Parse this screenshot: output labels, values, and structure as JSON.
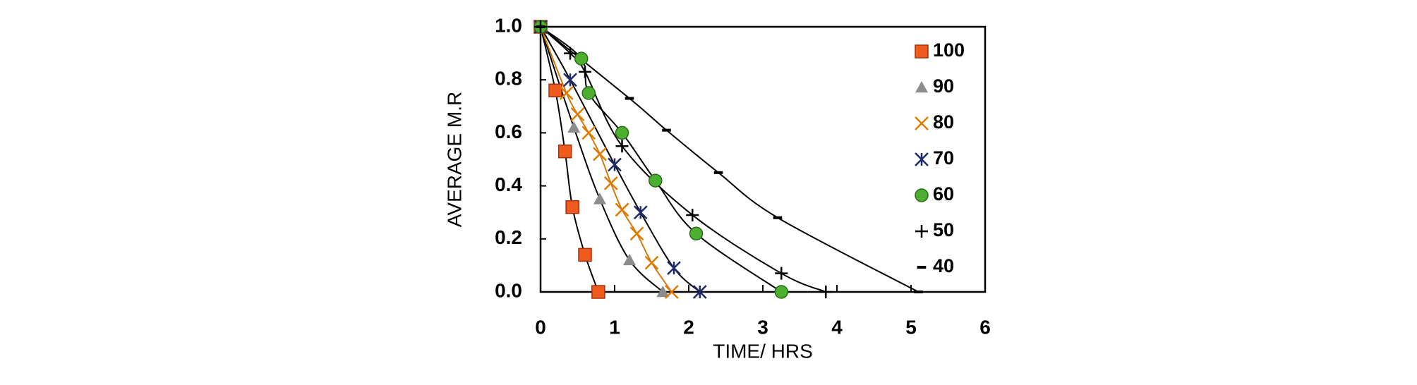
{
  "chart_data": {
    "type": "scatter",
    "x_label": "TIME/ HRS",
    "y_label": "AVERAGE M.R",
    "xlim": [
      0,
      6
    ],
    "ylim": [
      0,
      1
    ],
    "xticks": [
      0,
      1,
      2,
      3,
      4,
      5,
      6
    ],
    "yticks": [
      {
        "value": 0,
        "label": "0.0"
      },
      0.2,
      0.4,
      0.6,
      0.8,
      {
        "value": 1,
        "label": "1.0"
      }
    ],
    "legend": "top-right",
    "series": [
      {
        "name": "100",
        "marker": "square",
        "color": "#ef5a1e",
        "line_color": "#000000",
        "x": [
          0,
          0.2,
          0.33,
          0.43,
          0.6,
          0.78
        ],
        "values": [
          1,
          0.76,
          0.53,
          0.32,
          0.14,
          0
        ]
      },
      {
        "name": "90",
        "marker": "triangle",
        "color": "#8c8c8c",
        "line_color": "#000000",
        "x": [
          0,
          0.45,
          0.8,
          1.2,
          1.65
        ],
        "values": [
          1,
          0.62,
          0.35,
          0.12,
          0
        ]
      },
      {
        "name": "80",
        "marker": "x",
        "color": "#e07b00",
        "line_color": "#d07a10",
        "x": [
          0,
          0.35,
          0.5,
          0.65,
          0.8,
          0.95,
          1.1,
          1.3,
          1.5,
          1.77
        ],
        "values": [
          1,
          0.75,
          0.67,
          0.6,
          0.52,
          0.41,
          0.31,
          0.22,
          0.11,
          0
        ]
      },
      {
        "name": "70",
        "marker": "star",
        "color": "#1f2a6b",
        "line_color": "#000000",
        "x": [
          0,
          0.4,
          1.0,
          1.35,
          1.8,
          2.15
        ],
        "values": [
          1,
          0.8,
          0.48,
          0.3,
          0.09,
          0
        ]
      },
      {
        "name": "60",
        "marker": "circle",
        "color": "#4caf30",
        "line_color": "#000000",
        "x": [
          0,
          0.55,
          0.65,
          1.1,
          1.55,
          2.1,
          3.25
        ],
        "values": [
          1,
          0.88,
          0.75,
          0.6,
          0.42,
          0.22,
          0
        ]
      },
      {
        "name": "50",
        "marker": "plus",
        "color": "#000000",
        "line_color": "#000000",
        "x": [
          0,
          0.4,
          0.6,
          1.1,
          2.05,
          3.25,
          3.85
        ],
        "values": [
          1,
          0.9,
          0.83,
          0.55,
          0.29,
          0.07,
          0
        ]
      },
      {
        "name": "40",
        "marker": "dash",
        "color": "#000000",
        "line_color": "#000000",
        "x": [
          0,
          1.2,
          1.7,
          2.4,
          3.2,
          5.1
        ],
        "values": [
          1,
          0.73,
          0.61,
          0.45,
          0.28,
          0
        ]
      }
    ]
  }
}
